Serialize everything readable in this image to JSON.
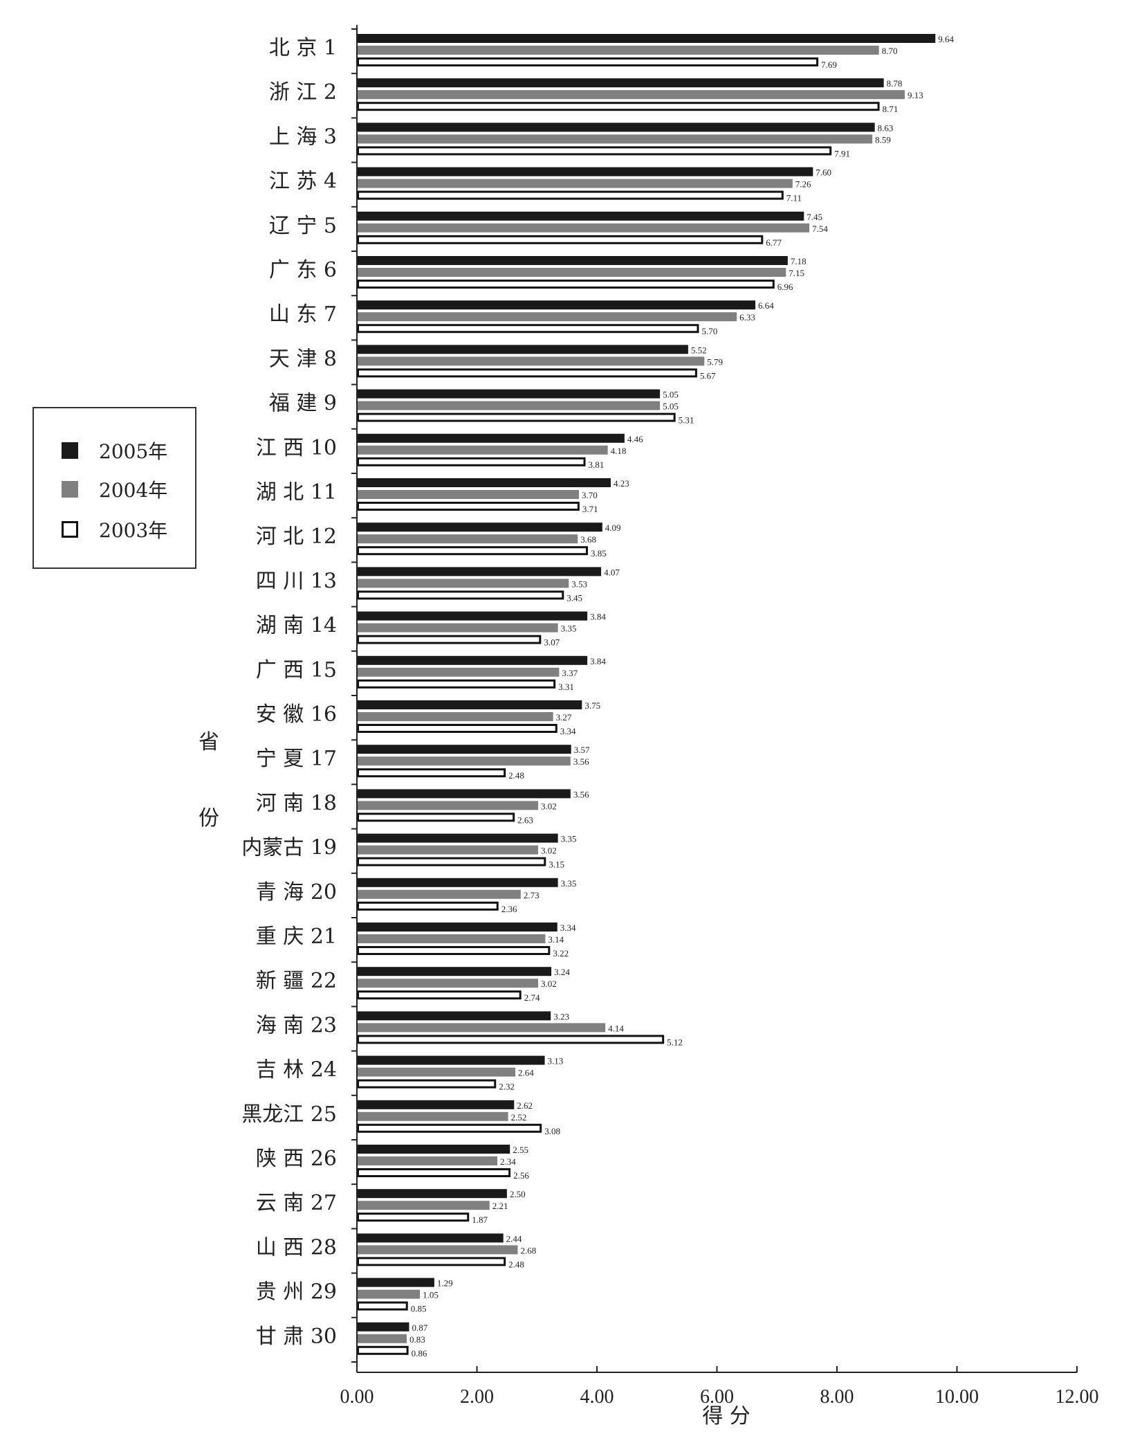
{
  "chart_data": {
    "type": "bar",
    "orientation": "horizontal",
    "categories": [
      "北 京 1",
      "浙 江 2",
      "上 海 3",
      "江 苏 4",
      "辽 宁 5",
      "广 东 6",
      "山 东 7",
      "天 津 8",
      "福 建 9",
      "江 西 10",
      "湖 北 11",
      "河 北 12",
      "四 川 13",
      "湖 南 14",
      "广 西 15",
      "安 徽 16",
      "宁 夏 17",
      "河 南 18",
      "内蒙古 19",
      "青 海 20",
      "重 庆 21",
      "新 疆 22",
      "海 南 23",
      "吉 林 24",
      "黑龙江 25",
      "陕 西 26",
      "云 南 27",
      "山 西 28",
      "贵 州 29",
      "甘 肃 30"
    ],
    "series": [
      {
        "name": "2005年",
        "color": "#1a1a1a",
        "values": [
          9.64,
          8.78,
          8.63,
          7.6,
          7.45,
          7.18,
          6.64,
          5.52,
          5.05,
          4.46,
          4.23,
          4.09,
          4.07,
          3.84,
          3.84,
          3.75,
          3.57,
          3.56,
          3.35,
          3.35,
          3.34,
          3.24,
          3.23,
          3.13,
          2.62,
          2.55,
          2.5,
          2.44,
          1.29,
          0.87
        ],
        "labels": [
          "9.64",
          "8.78",
          "8.63",
          "7.60",
          "7.45",
          "7.18",
          "6.64",
          "5.52",
          "5.05",
          "4.46",
          "4.23",
          "4.09",
          "4.07",
          "3.84",
          "3.84",
          "3.75",
          "3.57",
          "3.56",
          "3.35",
          "3.35",
          "3.34",
          "3.24",
          "3.23",
          "3.13",
          "2.62",
          "2.55",
          "2.50",
          "2.44",
          "1.29",
          "0.87"
        ]
      },
      {
        "name": "2004年",
        "color": "#808080",
        "values": [
          8.7,
          9.13,
          8.59,
          7.26,
          7.54,
          7.15,
          6.33,
          5.79,
          5.05,
          4.18,
          3.7,
          3.68,
          3.53,
          3.35,
          3.37,
          3.27,
          3.56,
          3.02,
          3.02,
          2.73,
          3.14,
          3.02,
          4.14,
          2.64,
          2.52,
          2.34,
          2.21,
          2.68,
          1.05,
          0.83
        ],
        "labels": [
          "8.70",
          "9.13",
          "8.59",
          "7.26",
          "7.54",
          "7.15",
          "6.33",
          "5.79",
          "5.05",
          "4.18",
          "3.70",
          "3.68",
          "3.53",
          "3.35",
          "3.37",
          "3.27",
          "3.56",
          "3.02",
          "3.02",
          "2.73",
          "3.14",
          "3.02",
          "4.14",
          "2.64",
          "2.52",
          "2.34",
          "2.21",
          "2.68",
          "1.05",
          "0.83"
        ]
      },
      {
        "name": "2003年",
        "color": "#ffffff",
        "values": [
          7.69,
          8.71,
          7.91,
          7.11,
          6.77,
          6.96,
          5.7,
          5.67,
          5.31,
          3.81,
          3.71,
          3.85,
          3.45,
          3.07,
          3.31,
          3.34,
          2.48,
          2.63,
          3.15,
          2.36,
          3.22,
          2.74,
          5.12,
          2.32,
          3.08,
          2.56,
          1.87,
          2.48,
          0.85,
          0.86
        ],
        "labels": [
          "7.69",
          "8.71",
          "7.91",
          "7.11",
          "6.77",
          "6.96",
          "5.70",
          "5.67",
          "5.31",
          "3.81",
          "3.71",
          "3.85",
          "3.45",
          "3.07",
          "3.31",
          "3.34",
          "2.48",
          "2.63",
          "3.15",
          "2.36",
          "3.22",
          "2.74",
          "5.12",
          "2.32",
          "3.08",
          "2.56",
          "1.87",
          "2.48",
          "0.85",
          "0.86"
        ]
      }
    ],
    "x_ticks": [
      "0.00",
      "2.00",
      "4.00",
      "6.00",
      "8.00",
      "10.00",
      "12.00"
    ],
    "xlim": [
      0,
      12
    ],
    "xlabel": "得 分",
    "ylabel": [
      "省",
      "份"
    ],
    "grid": false,
    "legend_position": "left"
  }
}
